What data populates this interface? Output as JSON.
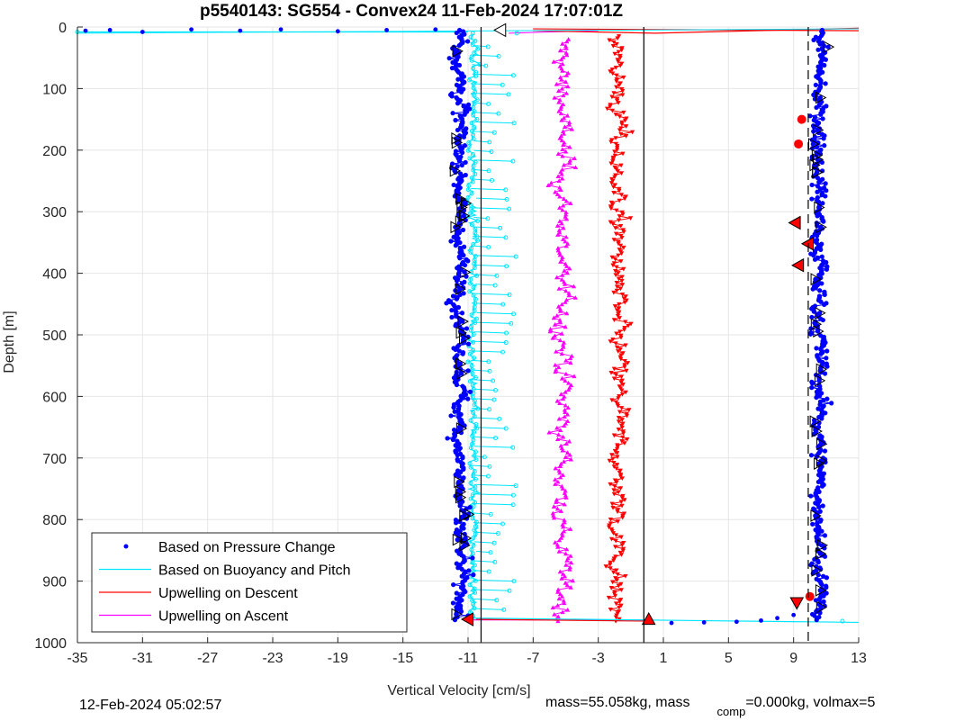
{
  "chart_data": {
    "type": "scatter",
    "title": "p5540143: SG554 - Convex24 11-Feb-2024 17:07:01Z",
    "xlabel": "Vertical Velocity [cm/s]",
    "ylabel": "Depth [m]",
    "xlim": [
      -35,
      13
    ],
    "ylim": [
      0,
      1000
    ],
    "y_reversed": true,
    "grid": true,
    "xticks": [
      "-35",
      "-31",
      "-27",
      "-23",
      "-19",
      "-15",
      "-11",
      "-7",
      "-3",
      "1",
      "5",
      "9",
      "13"
    ],
    "yticks": [
      "0",
      "100",
      "200",
      "300",
      "400",
      "500",
      "600",
      "700",
      "800",
      "900",
      "1000"
    ],
    "legend_position": "bottom-left",
    "reference_lines": [
      {
        "x": -10.2,
        "style": "solid"
      },
      {
        "x": -0.2,
        "style": "solid"
      },
      {
        "x": 9.9,
        "style": "dashed"
      }
    ],
    "series": [
      {
        "name": "Based on Pressure Change",
        "color": "#0000ff",
        "marker": "dot",
        "descent": {
          "x_mean": -11.5,
          "x_spread": 0.8,
          "depth_range": [
            5,
            963
          ]
        },
        "ascent": {
          "x_mean": 10.6,
          "x_spread": 0.8,
          "depth_range": [
            5,
            963
          ]
        },
        "surface_points": [
          [
            -34.5,
            6
          ],
          [
            -33,
            5
          ],
          [
            -31,
            8
          ],
          [
            -28,
            4
          ],
          [
            -25,
            6
          ],
          [
            -22.5,
            4
          ],
          [
            -19,
            7
          ],
          [
            -16,
            5
          ],
          [
            -13,
            4
          ],
          [
            1.5,
            968
          ],
          [
            3.5,
            967
          ],
          [
            5.5,
            966
          ],
          [
            7,
            964
          ],
          [
            8,
            960
          ],
          [
            9,
            955
          ]
        ]
      },
      {
        "name": "Based on Buoyancy and Pitch",
        "color": "#00e5ff",
        "marker": "circle",
        "descent": {
          "x_mean": -10.7,
          "x_spread": 0.5,
          "depth_range": [
            10,
            960
          ]
        },
        "surface_points": [
          [
            -35,
            8
          ],
          [
            -13,
            5
          ],
          [
            -8,
            10
          ],
          [
            12,
            965
          ]
        ]
      },
      {
        "name": "Upwelling on Descent",
        "color": "#ff0000",
        "marker": "triangle-down",
        "x_mean": -1.8,
        "x_spread": 1.0,
        "depth_range": [
          15,
          965
        ],
        "surface_points": [
          [
            -7,
            6
          ],
          [
            0.5,
            10
          ],
          [
            13,
            2
          ]
        ]
      },
      {
        "name": "Upwelling on Ascent",
        "color": "#ff00ff",
        "marker": "triangle-up",
        "x_mean": -5.2,
        "x_spread": 1.0,
        "depth_range": [
          20,
          965
        ],
        "surface_points": [
          [
            -8.5,
            10
          ],
          [
            -6,
            8
          ],
          [
            -3,
            6
          ]
        ]
      }
    ],
    "markers": [
      {
        "kind": "red-dot",
        "x": 9.5,
        "y": 150
      },
      {
        "kind": "red-dot",
        "x": 9.3,
        "y": 190
      },
      {
        "kind": "red-dot",
        "x": 10.0,
        "y": 925
      },
      {
        "kind": "red-triangle-left",
        "x": 9.1,
        "y": 318
      },
      {
        "kind": "red-triangle-left",
        "x": 9.9,
        "y": 352
      },
      {
        "kind": "red-triangle-left",
        "x": 9.3,
        "y": 387
      },
      {
        "kind": "red-triangle-down",
        "x": 9.2,
        "y": 935
      },
      {
        "kind": "red-triangle-up",
        "x": 0.1,
        "y": 962
      },
      {
        "kind": "red-triangle-left",
        "x": -11.0,
        "y": 962
      }
    ]
  },
  "footer": {
    "timestamp": "12-Feb-2024 05:02:57",
    "mass_label": "mass=55.058kg, mass",
    "comp_sub": "comp",
    "comp_rest": "=0.000kg, volmax=5"
  }
}
